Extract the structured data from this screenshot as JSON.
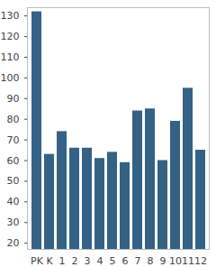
{
  "chart_data": {
    "type": "bar",
    "categories": [
      "PK",
      "K",
      "1",
      "2",
      "3",
      "4",
      "5",
      "6",
      "7",
      "8",
      "9",
      "10",
      "11",
      "12"
    ],
    "values": [
      132,
      63,
      74,
      66,
      66,
      61,
      64,
      59,
      84,
      85,
      60,
      79,
      95,
      65
    ],
    "color": "#346186",
    "ylim": [
      17,
      134
    ],
    "yticks": [
      20,
      30,
      40,
      50,
      60,
      70,
      80,
      90,
      100,
      110,
      120,
      130
    ],
    "grid": false
  }
}
